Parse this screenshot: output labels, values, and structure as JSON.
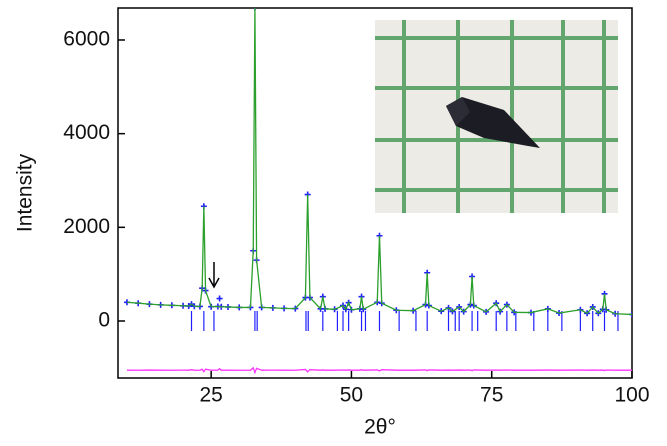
{
  "chart_data": {
    "type": "line",
    "xlabel": "2θ°",
    "ylabel": "Intensity",
    "xlim": [
      8.4,
      100
    ],
    "ylim": [
      -1217,
      6683
    ],
    "xticks": [
      25,
      50,
      75,
      100
    ],
    "yticks": [
      0,
      2000,
      4000,
      6000
    ],
    "x": [
      10,
      12,
      14,
      16,
      18,
      20,
      21,
      21.5,
      22,
      23,
      23.4,
      23.7,
      24,
      25,
      26.2,
      26.5,
      26.8,
      28,
      30,
      32,
      32.5,
      32.8,
      33.1,
      34,
      36,
      38,
      40,
      41.8,
      42.2,
      42.6,
      44.5,
      44.9,
      45.3,
      47,
      48.5,
      49,
      49.5,
      50,
      51.5,
      51.8,
      52.1,
      54.6,
      55,
      55.4,
      58,
      61,
      63.2,
      63.5,
      63.8,
      66,
      67.3,
      68,
      69.2,
      70,
      71.2,
      71.5,
      71.8,
      74,
      75.8,
      76.5,
      77.7,
      79,
      82,
      85,
      87,
      90.8,
      92,
      93,
      94,
      94.8,
      95.1,
      95.4,
      97,
      100
    ],
    "series": [
      {
        "color": "#1f1fff",
        "marker": "+",
        "values": [
          400,
          380,
          360,
          345,
          335,
          325,
          320,
          360,
          315,
          310,
          700,
          2450,
          650,
          305,
          310,
          480,
          305,
          300,
          290,
          290,
          1500,
          6700,
          1300,
          290,
          280,
          270,
          265,
          500,
          2700,
          500,
          260,
          520,
          260,
          250,
          330,
          250,
          390,
          240,
          260,
          520,
          250,
          400,
          1820,
          380,
          230,
          220,
          350,
          1030,
          330,
          210,
          280,
          205,
          300,
          200,
          350,
          950,
          330,
          195,
          380,
          200,
          350,
          185,
          180,
          260,
          170,
          240,
          165,
          300,
          165,
          250,
          580,
          240,
          155,
          140
        ]
      },
      {
        "color": "#2ca02c",
        "marker": "line",
        "values": [
          400,
          380,
          360,
          345,
          335,
          325,
          320,
          360,
          315,
          310,
          700,
          2450,
          650,
          305,
          310,
          300,
          305,
          300,
          290,
          290,
          1500,
          6700,
          1300,
          290,
          280,
          270,
          265,
          500,
          2700,
          500,
          260,
          520,
          260,
          250,
          330,
          250,
          390,
          240,
          260,
          520,
          250,
          400,
          1820,
          380,
          230,
          220,
          350,
          1030,
          330,
          210,
          280,
          205,
          300,
          200,
          350,
          950,
          330,
          195,
          380,
          200,
          350,
          185,
          180,
          260,
          170,
          240,
          165,
          300,
          165,
          250,
          580,
          240,
          155,
          140
        ]
      },
      {
        "color": "#ff33ff",
        "marker": "line",
        "values": [
          -1050,
          -1052,
          -1048,
          -1050,
          -1051,
          -1049,
          -1050,
          -1040,
          -1050,
          -1051,
          -1030,
          -1080,
          -1030,
          -1050,
          -1049,
          -1020,
          -1050,
          -1050,
          -1051,
          -1050,
          -1000,
          -1100,
          -1010,
          -1050,
          -1049,
          -1050,
          -1051,
          -1035,
          -1085,
          -1040,
          -1050,
          -1045,
          -1050,
          -1050,
          -1046,
          -1050,
          -1045,
          -1050,
          -1050,
          -1040,
          -1050,
          -1045,
          -1065,
          -1040,
          -1050,
          -1050,
          -1045,
          -1060,
          -1045,
          -1050,
          -1048,
          -1050,
          -1047,
          -1050,
          -1046,
          -1060,
          -1045,
          -1050,
          -1046,
          -1050,
          -1046,
          -1050,
          -1050,
          -1048,
          -1050,
          -1048,
          -1050,
          -1047,
          -1050,
          -1048,
          -1058,
          -1046,
          -1050,
          -1050
        ]
      }
    ],
    "reflections": {
      "color": "#1f1fff",
      "x": [
        21.5,
        23.7,
        25.5,
        32.8,
        33.2,
        41.9,
        42.3,
        44.9,
        47.5,
        48.5,
        49.5,
        51.8,
        52.5,
        55,
        58.5,
        61.5,
        63.5,
        67.3,
        68.5,
        69.2,
        71.5,
        72.5,
        75.8,
        77.7,
        79.3,
        82.5,
        85,
        87.5,
        90.8,
        93,
        95.1,
        97.5
      ]
    }
  }
}
